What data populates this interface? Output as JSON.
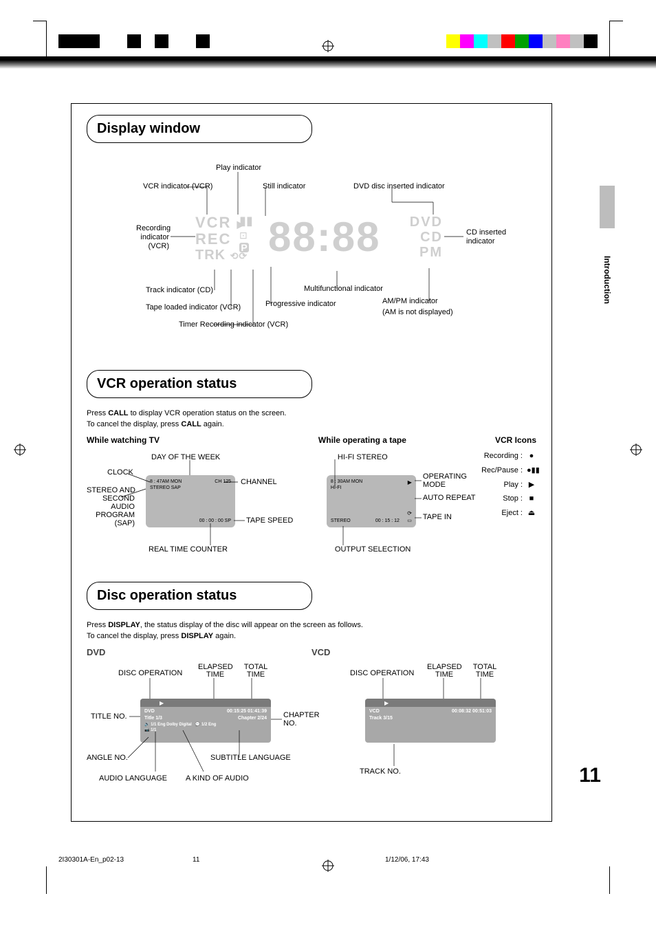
{
  "print_marks": {
    "left_bars": [
      "#000000",
      "#000000",
      "#000000",
      "#ffffff",
      "#ffffff",
      "#000000",
      "#ffffff",
      "#000000",
      "#ffffff",
      "#ffffff",
      "#000000"
    ],
    "right_bars": [
      "#ffff00",
      "#ff00ff",
      "#00ffff",
      "#c0c0c0",
      "#ff0000",
      "#00a000",
      "#0000ff",
      "#c0c0c0",
      "#ff80c0",
      "#c0c0c0",
      "#000000"
    ]
  },
  "side_tab": "Introduction",
  "page_number": "11",
  "footer": {
    "file": "2I30301A-En_p02-13",
    "page": "11",
    "date": "1/12/06, 17:43"
  },
  "sections": {
    "display": {
      "title": "Display window",
      "lcd": {
        "left": [
          "VCR",
          "REC",
          "TRK"
        ],
        "right": [
          "DVD",
          "CD",
          "PM"
        ],
        "digits": "88:88"
      },
      "callouts": {
        "play": "Play indicator",
        "vcr_ind": "VCR indicator (VCR)",
        "still": "Still indicator",
        "dvd_ins": "DVD disc inserted indicator",
        "rec_ind1": "Recording",
        "rec_ind2": "indicator",
        "rec_ind3": "(VCR)",
        "cd_ins1": "CD inserted",
        "cd_ins2": "indicator",
        "track": "Track indicator (CD)",
        "tape_loaded": "Tape loaded indicator (VCR)",
        "timer_rec": "Timer Recording indicator (VCR)",
        "progressive": "Progressive indicator",
        "multi": "Multifunctional indicator",
        "ampm1": "AM/PM indicator",
        "ampm2": "(AM is not displayed)"
      }
    },
    "vcr": {
      "title": "VCR operation status",
      "text1_a": "Press ",
      "text1_b": "CALL",
      "text1_c": " to display VCR operation status on the screen.",
      "text2_a": "To cancel the display, press ",
      "text2_b": "CALL",
      "text2_c": " again.",
      "col1_hdr": "While watching TV",
      "col2_hdr": "While operating a tape",
      "col3_hdr": "VCR Icons",
      "tv_callouts": {
        "day": "DAY OF THE WEEK",
        "clock": "CLOCK",
        "sap1": "STEREO AND",
        "sap2": "SECOND",
        "sap3": "AUDIO",
        "sap4": "PROGRAM",
        "sap5": "(SAP)",
        "channel": "CHANNEL",
        "tape_speed": "TAPE SPEED",
        "rtc": "REAL TIME COUNTER"
      },
      "tv_osd": {
        "time": "8 : 47AM  MON",
        "stereo": "STEREO  SAP",
        "ch": "CH  125",
        "counter": "00 : 00 : 00   SP"
      },
      "tape_callouts": {
        "hifi": "HI-FI STEREO",
        "op1": "OPERATING",
        "op2": "MODE",
        "auto": "AUTO REPEAT",
        "tape_in": "TAPE IN",
        "out": "OUTPUT SELECTION"
      },
      "tape_osd": {
        "time": "8 : 30AM  MON",
        "hifi": "HI-FI",
        "stereo": "STEREO",
        "counter": "00 : 15 : 12"
      },
      "icons": {
        "recording": "Recording :",
        "recpause": "Rec/Pause :",
        "play": "Play :",
        "stop": "Stop :",
        "eject": "Eject :"
      }
    },
    "disc": {
      "title": "Disc operation status",
      "text1_a": "Press ",
      "text1_b": "DISPLAY",
      "text1_c": ", the status display of the disc will appear on the screen as follows.",
      "text2_a": "To cancel the display, press ",
      "text2_b": "DISPLAY",
      "text2_c": " again.",
      "dvd_hdr": "DVD",
      "vcd_hdr": "VCD",
      "dvd_callouts": {
        "disc_op": "DISC OPERATION",
        "elapsed1": "ELAPSED",
        "elapsed2": "TIME",
        "total1": "TOTAL",
        "total2": "TIME",
        "title_no": "TITLE NO.",
        "chapter1": "CHAPTER",
        "chapter2": "NO.",
        "angle": "ANGLE NO.",
        "sub_lang": "SUBTITLE LANGUAGE",
        "audio_lang": "AUDIO LANGUAGE",
        "kind_audio": "A KIND OF AUDIO"
      },
      "dvd_osd": {
        "l1a": "DVD",
        "l1b": "00:15:25  01:41:39",
        "l2a": "Title   1/3",
        "l2b": "Chapter 2/24",
        "l3": "1/1 Eng Dolby Digital",
        "l3b": "1/2 Eng",
        "l4": "1/1"
      },
      "vcd_callouts": {
        "disc_op": "DISC OPERATION",
        "elapsed1": "ELAPSED",
        "elapsed2": "TIME",
        "total1": "TOTAL",
        "total2": "TIME",
        "track_no": "TRACK NO."
      },
      "vcd_osd": {
        "l1a": "VCD",
        "l1b": "00:08:32  00:51:03",
        "l2": "Track  3/15"
      }
    }
  }
}
